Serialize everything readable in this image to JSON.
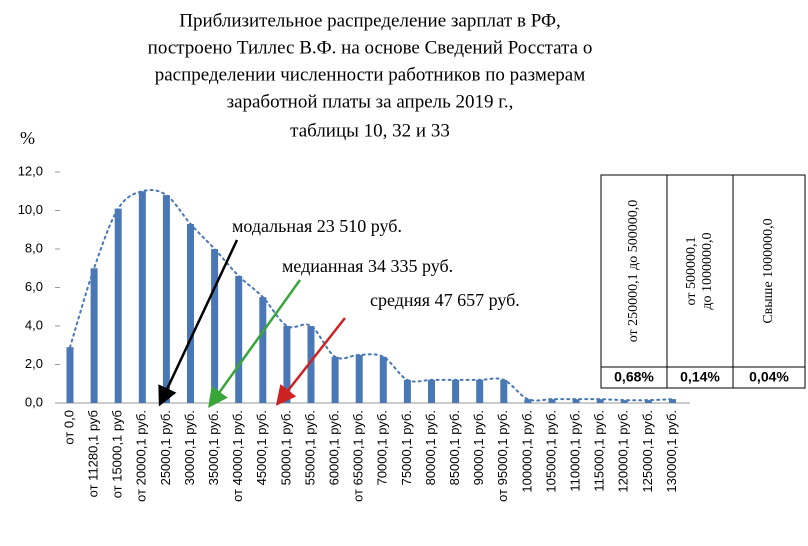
{
  "chart_data": {
    "type": "bar",
    "title": [
      "Приблизительное распределение зарплат в РФ,",
      "построено Тиллес В.Ф. на основе Сведений Росстата о",
      "распределении численности работников по размерам",
      "заработной платы за апрель 2019 г.,",
      "таблицы 10, 32 и 33"
    ],
    "y_label": "%",
    "categories": [
      "от 0,0",
      "от 11280,1 руб",
      "от 15000,1 руб",
      "от 20000,1 руб.",
      "25000,1 руб.",
      "30000,1 руб.",
      "35000,1 руб.",
      "от 40000,1 руб.",
      "45000,1 руб.",
      "50000,1 руб.",
      "55000,1 руб.",
      "60000,1 руб.",
      "от 65000,1 руб.",
      "70000,1 руб.",
      "75000,1 руб.",
      "80000,1 руб.",
      "85000,1 руб.",
      "90000,1 руб.",
      "от 95000,1 руб.",
      "100000,1 руб.",
      "105000,1 руб.",
      "110000,1 руб.",
      "115000,1 руб.",
      "120000,1 руб.",
      "125000,1 руб.",
      "130000,1 руб."
    ],
    "values": [
      2.9,
      7.0,
      10.1,
      11.0,
      10.8,
      9.3,
      8.0,
      6.6,
      5.5,
      4.0,
      4.0,
      2.4,
      2.5,
      2.4,
      1.2,
      1.2,
      1.2,
      1.2,
      1.2,
      0.2,
      0.2,
      0.2,
      0.2,
      0.15,
      0.15,
      0.2
    ],
    "color": "#4a78b4",
    "ylim": [
      0,
      12
    ],
    "yticks": [
      {
        "value": 0,
        "label": "0,0"
      },
      {
        "value": 2,
        "label": "2,0"
      },
      {
        "value": 4,
        "label": "4,0"
      },
      {
        "value": 6,
        "label": "6,0"
      },
      {
        "value": 8,
        "label": "8,0"
      },
      {
        "value": 10,
        "label": "10,0"
      },
      {
        "value": 12,
        "label": "12,0"
      }
    ],
    "annotations": [
      "модальная 23 510 руб.",
      "медианная 34 335 руб.",
      "средняя 47 657 руб."
    ]
  },
  "side_table": {
    "headers": [
      [
        "от 250000,1 до 500000,0"
      ],
      [
        "от 500000,1",
        "до 1000000,0"
      ],
      [
        "Свыше 1000000,0"
      ]
    ],
    "values": [
      "0,68%",
      "0,14%",
      "0,04%"
    ]
  }
}
